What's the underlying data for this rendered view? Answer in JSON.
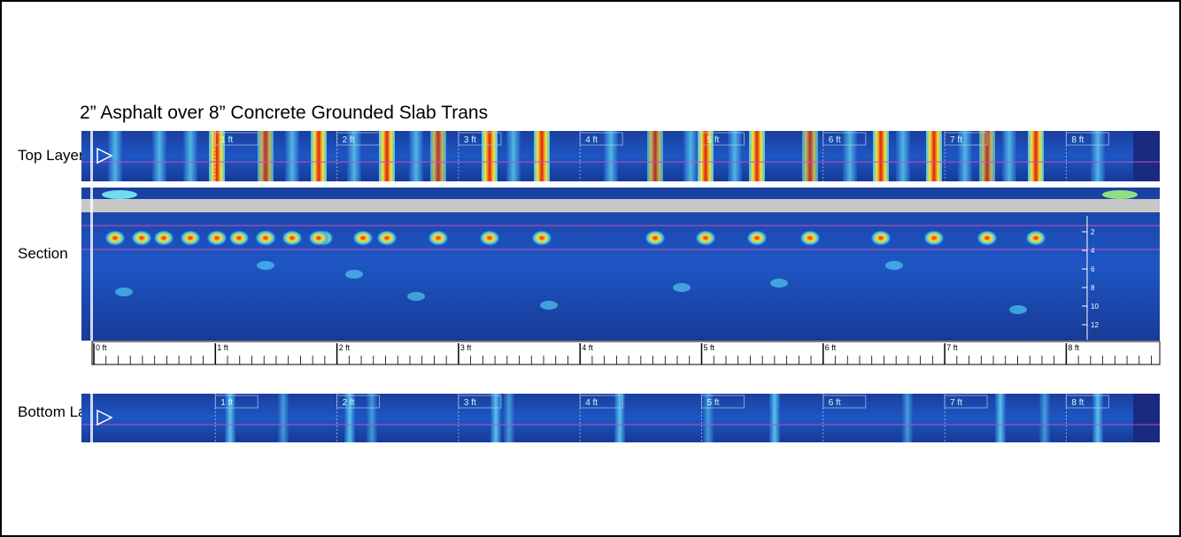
{
  "title": "2” Asphalt over 8” Concrete Grounded Slab Trans",
  "panels": {
    "top": "Top Layer",
    "section": "Section",
    "bottom": "Bottom Layer"
  },
  "top_markers": [
    "1 ft",
    "2 ft",
    "3 ft",
    "4 ft",
    "5 ft",
    "6 ft",
    "7 ft",
    "8 ft"
  ],
  "ruler": [
    "0 ft",
    "1 ft",
    "2 ft",
    "3 ft",
    "4 ft",
    "5 ft",
    "6 ft",
    "7 ft",
    "8 ft"
  ],
  "depth": [
    "2",
    "4",
    "6",
    "8",
    "10",
    "12"
  ],
  "bottom_markers": [
    "1 ft",
    "2 ft",
    "3 ft",
    "4 ft",
    "5 ft",
    "6 ft",
    "7 ft",
    "8 ft"
  ]
}
